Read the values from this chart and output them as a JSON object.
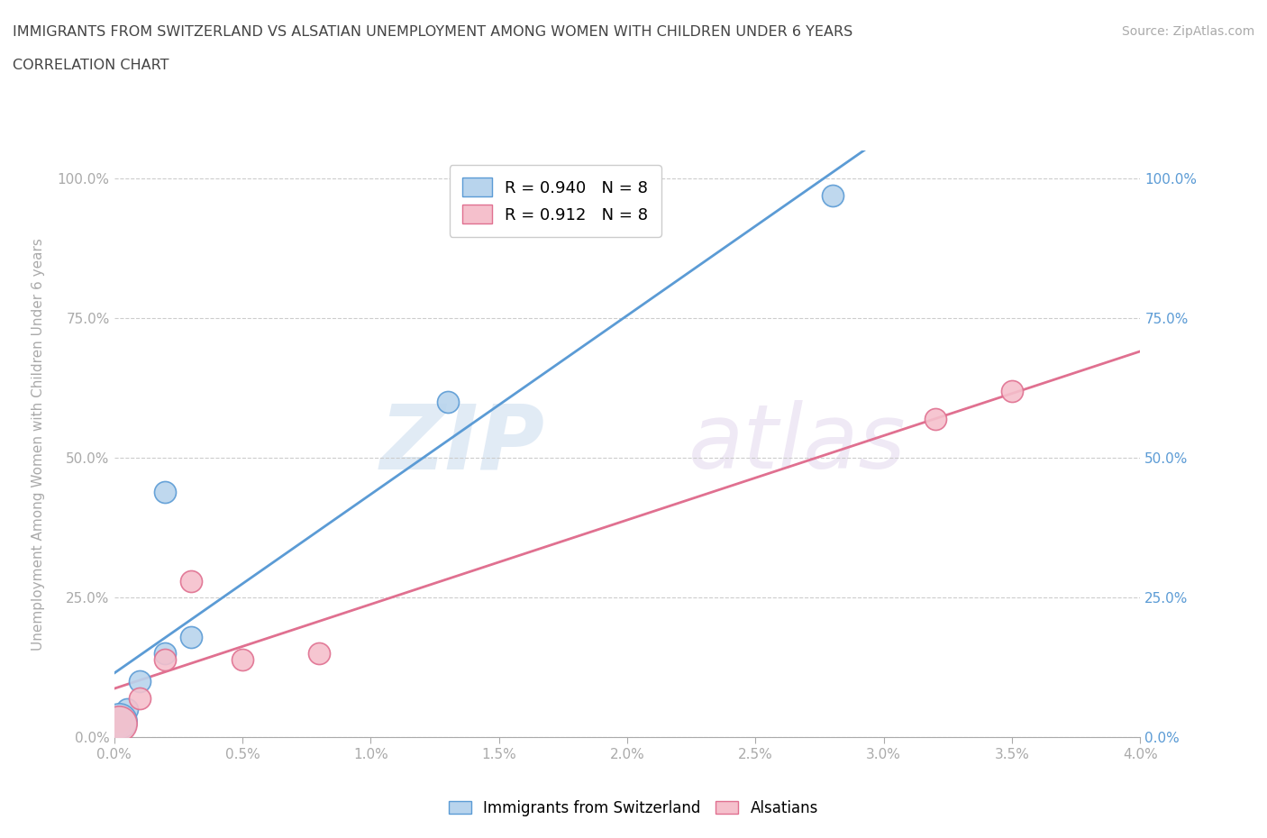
{
  "title_line1": "IMMIGRANTS FROM SWITZERLAND VS ALSATIAN UNEMPLOYMENT AMONG WOMEN WITH CHILDREN UNDER 6 YEARS",
  "title_line2": "CORRELATION CHART",
  "source_text": "Source: ZipAtlas.com",
  "ylabel": "Unemployment Among Women with Children Under 6 years",
  "xlim": [
    0.0,
    0.04
  ],
  "ylim": [
    0.0,
    1.05
  ],
  "xtick_labels": [
    "0.0%",
    "0.5%",
    "1.0%",
    "1.5%",
    "2.0%",
    "2.5%",
    "3.0%",
    "3.5%",
    "4.0%"
  ],
  "xtick_values": [
    0.0,
    0.005,
    0.01,
    0.015,
    0.02,
    0.025,
    0.03,
    0.035,
    0.04
  ],
  "ytick_labels": [
    "0.0%",
    "25.0%",
    "50.0%",
    "75.0%",
    "100.0%"
  ],
  "ytick_values": [
    0.0,
    0.25,
    0.5,
    0.75,
    1.0
  ],
  "swiss_x": [
    0.0002,
    0.0005,
    0.001,
    0.002,
    0.002,
    0.003,
    0.013,
    0.028
  ],
  "swiss_y": [
    0.02,
    0.05,
    0.1,
    0.15,
    0.44,
    0.18,
    0.6,
    0.97
  ],
  "alsatian_x": [
    0.0002,
    0.001,
    0.002,
    0.003,
    0.005,
    0.008,
    0.032,
    0.035
  ],
  "alsatian_y": [
    0.03,
    0.07,
    0.14,
    0.28,
    0.14,
    0.15,
    0.57,
    0.62
  ],
  "swiss_color": "#b8d4ed",
  "alsatian_color": "#f5c0cc",
  "swiss_line_color": "#5b9bd5",
  "alsatian_line_color": "#e07090",
  "swiss_R": 0.94,
  "swiss_N": 8,
  "alsatian_R": 0.912,
  "alsatian_N": 8,
  "legend_label_swiss": "Immigrants from Switzerland",
  "legend_label_alsatian": "Alsatians",
  "watermark_zip": "ZIP",
  "watermark_atlas": "atlas",
  "background_color": "#ffffff",
  "grid_color": "#cccccc",
  "title_color": "#444444",
  "axis_color": "#aaaaaa",
  "right_ytick_color": "#5b9bd5"
}
